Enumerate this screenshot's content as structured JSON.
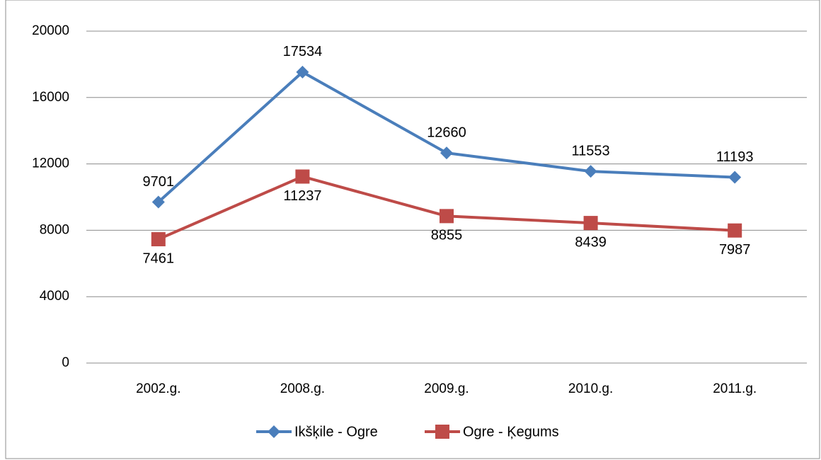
{
  "chart_data": {
    "type": "line",
    "categories": [
      "2002.g.",
      "2008.g.",
      "2009.g.",
      "2010.g.",
      "2011.g."
    ],
    "series": [
      {
        "name": "Ikšķile - Ogre",
        "color": "#4a7ebb",
        "marker": "diamond",
        "values": [
          9701,
          17534,
          12660,
          11553,
          11193
        ]
      },
      {
        "name": "Ogre - Ķegums",
        "color": "#be4b48",
        "marker": "square",
        "values": [
          7461,
          11237,
          8855,
          8439,
          7987
        ]
      }
    ],
    "ylim": [
      0,
      20000
    ],
    "yticks": [
      0,
      4000,
      8000,
      12000,
      16000,
      20000
    ],
    "grid": true,
    "legend": "bottom"
  }
}
